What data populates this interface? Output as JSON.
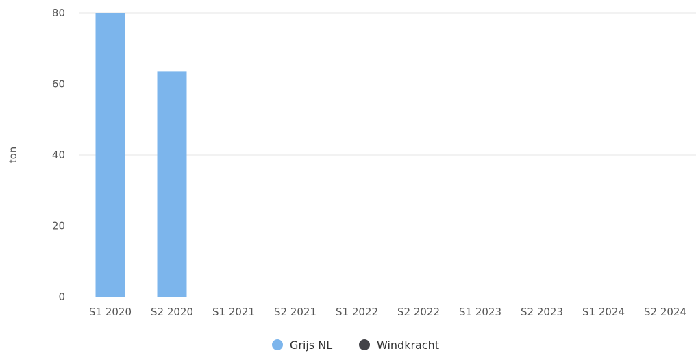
{
  "chart_data": {
    "type": "bar",
    "categories": [
      "S1 2020",
      "S2 2020",
      "S1 2021",
      "S2 2021",
      "S1 2022",
      "S2 2022",
      "S1 2023",
      "S2 2023",
      "S1 2024",
      "S2 2024"
    ],
    "series": [
      {
        "name": "Grijs NL",
        "color": "#7cb5ec",
        "values": [
          80,
          63.5,
          0,
          0,
          0,
          0,
          0,
          0,
          0,
          0
        ]
      },
      {
        "name": "Windkracht",
        "color": "#434348",
        "values": [
          0,
          0,
          0,
          0,
          0,
          0,
          0,
          0,
          0,
          0
        ]
      }
    ],
    "title": "",
    "xlabel": "",
    "ylabel": "ton",
    "ylim": [
      0,
      80
    ],
    "yticks": [
      0,
      20,
      40,
      60,
      80
    ],
    "grid": true,
    "legend": "bottom-center"
  }
}
